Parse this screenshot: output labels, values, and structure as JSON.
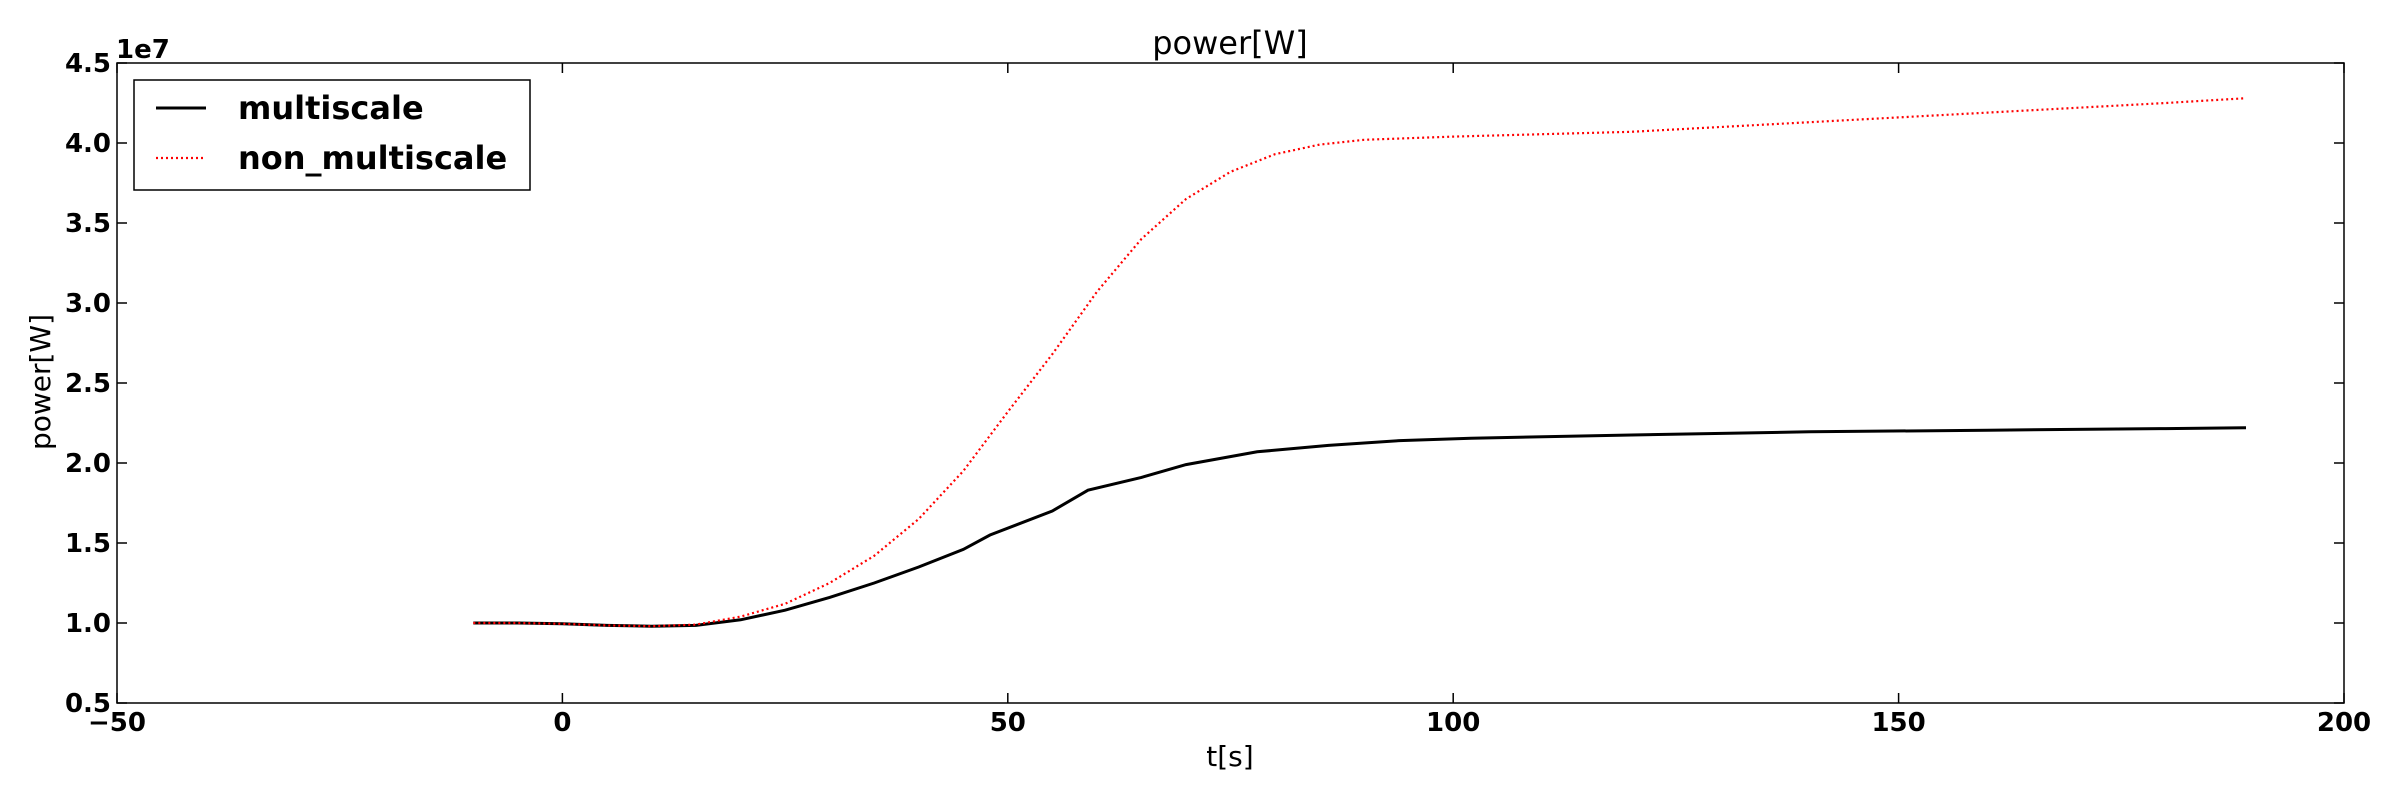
{
  "chart_data": {
    "type": "line",
    "title": "power[W]",
    "xlabel": "t[s]",
    "ylabel": "power[W]",
    "y_offset_label": "1e7",
    "xlim": [
      -50,
      200
    ],
    "ylim": [
      0.5,
      4.5
    ],
    "x_ticks": [
      -50,
      0,
      50,
      100,
      150,
      200
    ],
    "x_tick_labels": [
      "−50",
      "0",
      "50",
      "100",
      "150",
      "200"
    ],
    "y_ticks": [
      0.5,
      1.0,
      1.5,
      2.0,
      2.5,
      3.0,
      3.5,
      4.0,
      4.5
    ],
    "y_tick_labels": [
      "0.5",
      "1.0",
      "1.5",
      "2.0",
      "2.5",
      "3.0",
      "3.5",
      "4.0",
      "4.5"
    ],
    "grid": false,
    "legend_position": "top-left",
    "series": [
      {
        "name": "multiscale",
        "color": "#000000",
        "style": "solid",
        "x": [
          -10,
          -5,
          0,
          5,
          10,
          15,
          20,
          25,
          30,
          35,
          40,
          45,
          48,
          55,
          59,
          65,
          70,
          78,
          86,
          94,
          102,
          120,
          140,
          160,
          180,
          189
        ],
        "y": [
          1.0,
          1.0,
          0.995,
          0.985,
          0.98,
          0.985,
          1.02,
          1.08,
          1.16,
          1.25,
          1.35,
          1.46,
          1.55,
          1.7,
          1.83,
          1.91,
          1.99,
          2.07,
          2.11,
          2.14,
          2.155,
          2.175,
          2.195,
          2.205,
          2.215,
          2.22
        ]
      },
      {
        "name": "non_multiscale",
        "color": "#ff0000",
        "style": "dotted",
        "x": [
          -10,
          -5,
          0,
          5,
          10,
          15,
          20,
          25,
          30,
          35,
          40,
          45,
          50,
          55,
          60,
          65,
          70,
          75,
          80,
          85,
          90,
          100,
          120,
          140,
          160,
          180,
          189
        ],
        "y": [
          1.0,
          1.0,
          0.995,
          0.985,
          0.98,
          0.99,
          1.04,
          1.12,
          1.25,
          1.42,
          1.65,
          1.95,
          2.32,
          2.68,
          3.07,
          3.4,
          3.65,
          3.82,
          3.93,
          3.99,
          4.02,
          4.04,
          4.07,
          4.13,
          4.19,
          4.25,
          4.28
        ]
      }
    ]
  }
}
